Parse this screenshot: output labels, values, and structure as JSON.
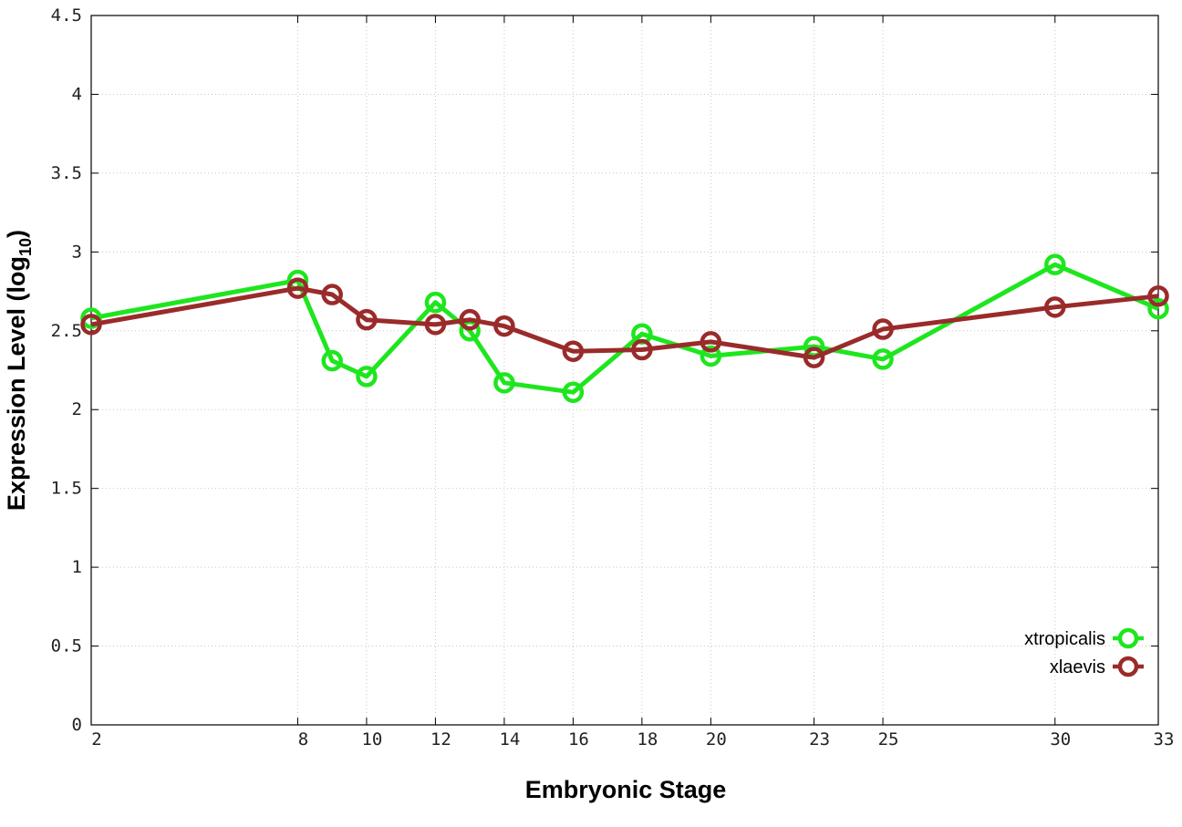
{
  "chart_data": {
    "type": "line",
    "xlabel": "Embryonic Stage",
    "ylabel": "Expression Level (log",
    "ylabel_sub": "10",
    "ylabel_close": ")",
    "ylim": [
      0,
      4.5
    ],
    "xlim": [
      2,
      33
    ],
    "yticks": [
      "0",
      "0.5",
      "1",
      "1.5",
      "2",
      "2.5",
      "3",
      "3.5",
      "4",
      "4.5"
    ],
    "xticks": [
      "2",
      "8",
      "10",
      "12",
      "14",
      "16",
      "18",
      "20",
      "23",
      "25",
      "30",
      "33"
    ],
    "grid": true,
    "legend_position": "bottom-right",
    "series": [
      {
        "name": "xtropicalis",
        "color": "#1ee61e",
        "x": [
          2,
          8,
          9,
          10,
          12,
          13,
          14,
          16,
          18,
          20,
          23,
          25,
          30,
          33
        ],
        "y": [
          2.58,
          2.82,
          2.31,
          2.21,
          2.68,
          2.5,
          2.17,
          2.11,
          2.48,
          2.34,
          2.4,
          2.32,
          2.92,
          2.64
        ]
      },
      {
        "name": "xlaevis",
        "color": "#9a2b2b",
        "x": [
          2,
          8,
          9,
          10,
          12,
          13,
          14,
          16,
          18,
          20,
          23,
          25,
          30,
          33
        ],
        "y": [
          2.54,
          2.77,
          2.73,
          2.57,
          2.54,
          2.57,
          2.53,
          2.37,
          2.38,
          2.43,
          2.33,
          2.51,
          2.65,
          2.72
        ]
      }
    ]
  }
}
